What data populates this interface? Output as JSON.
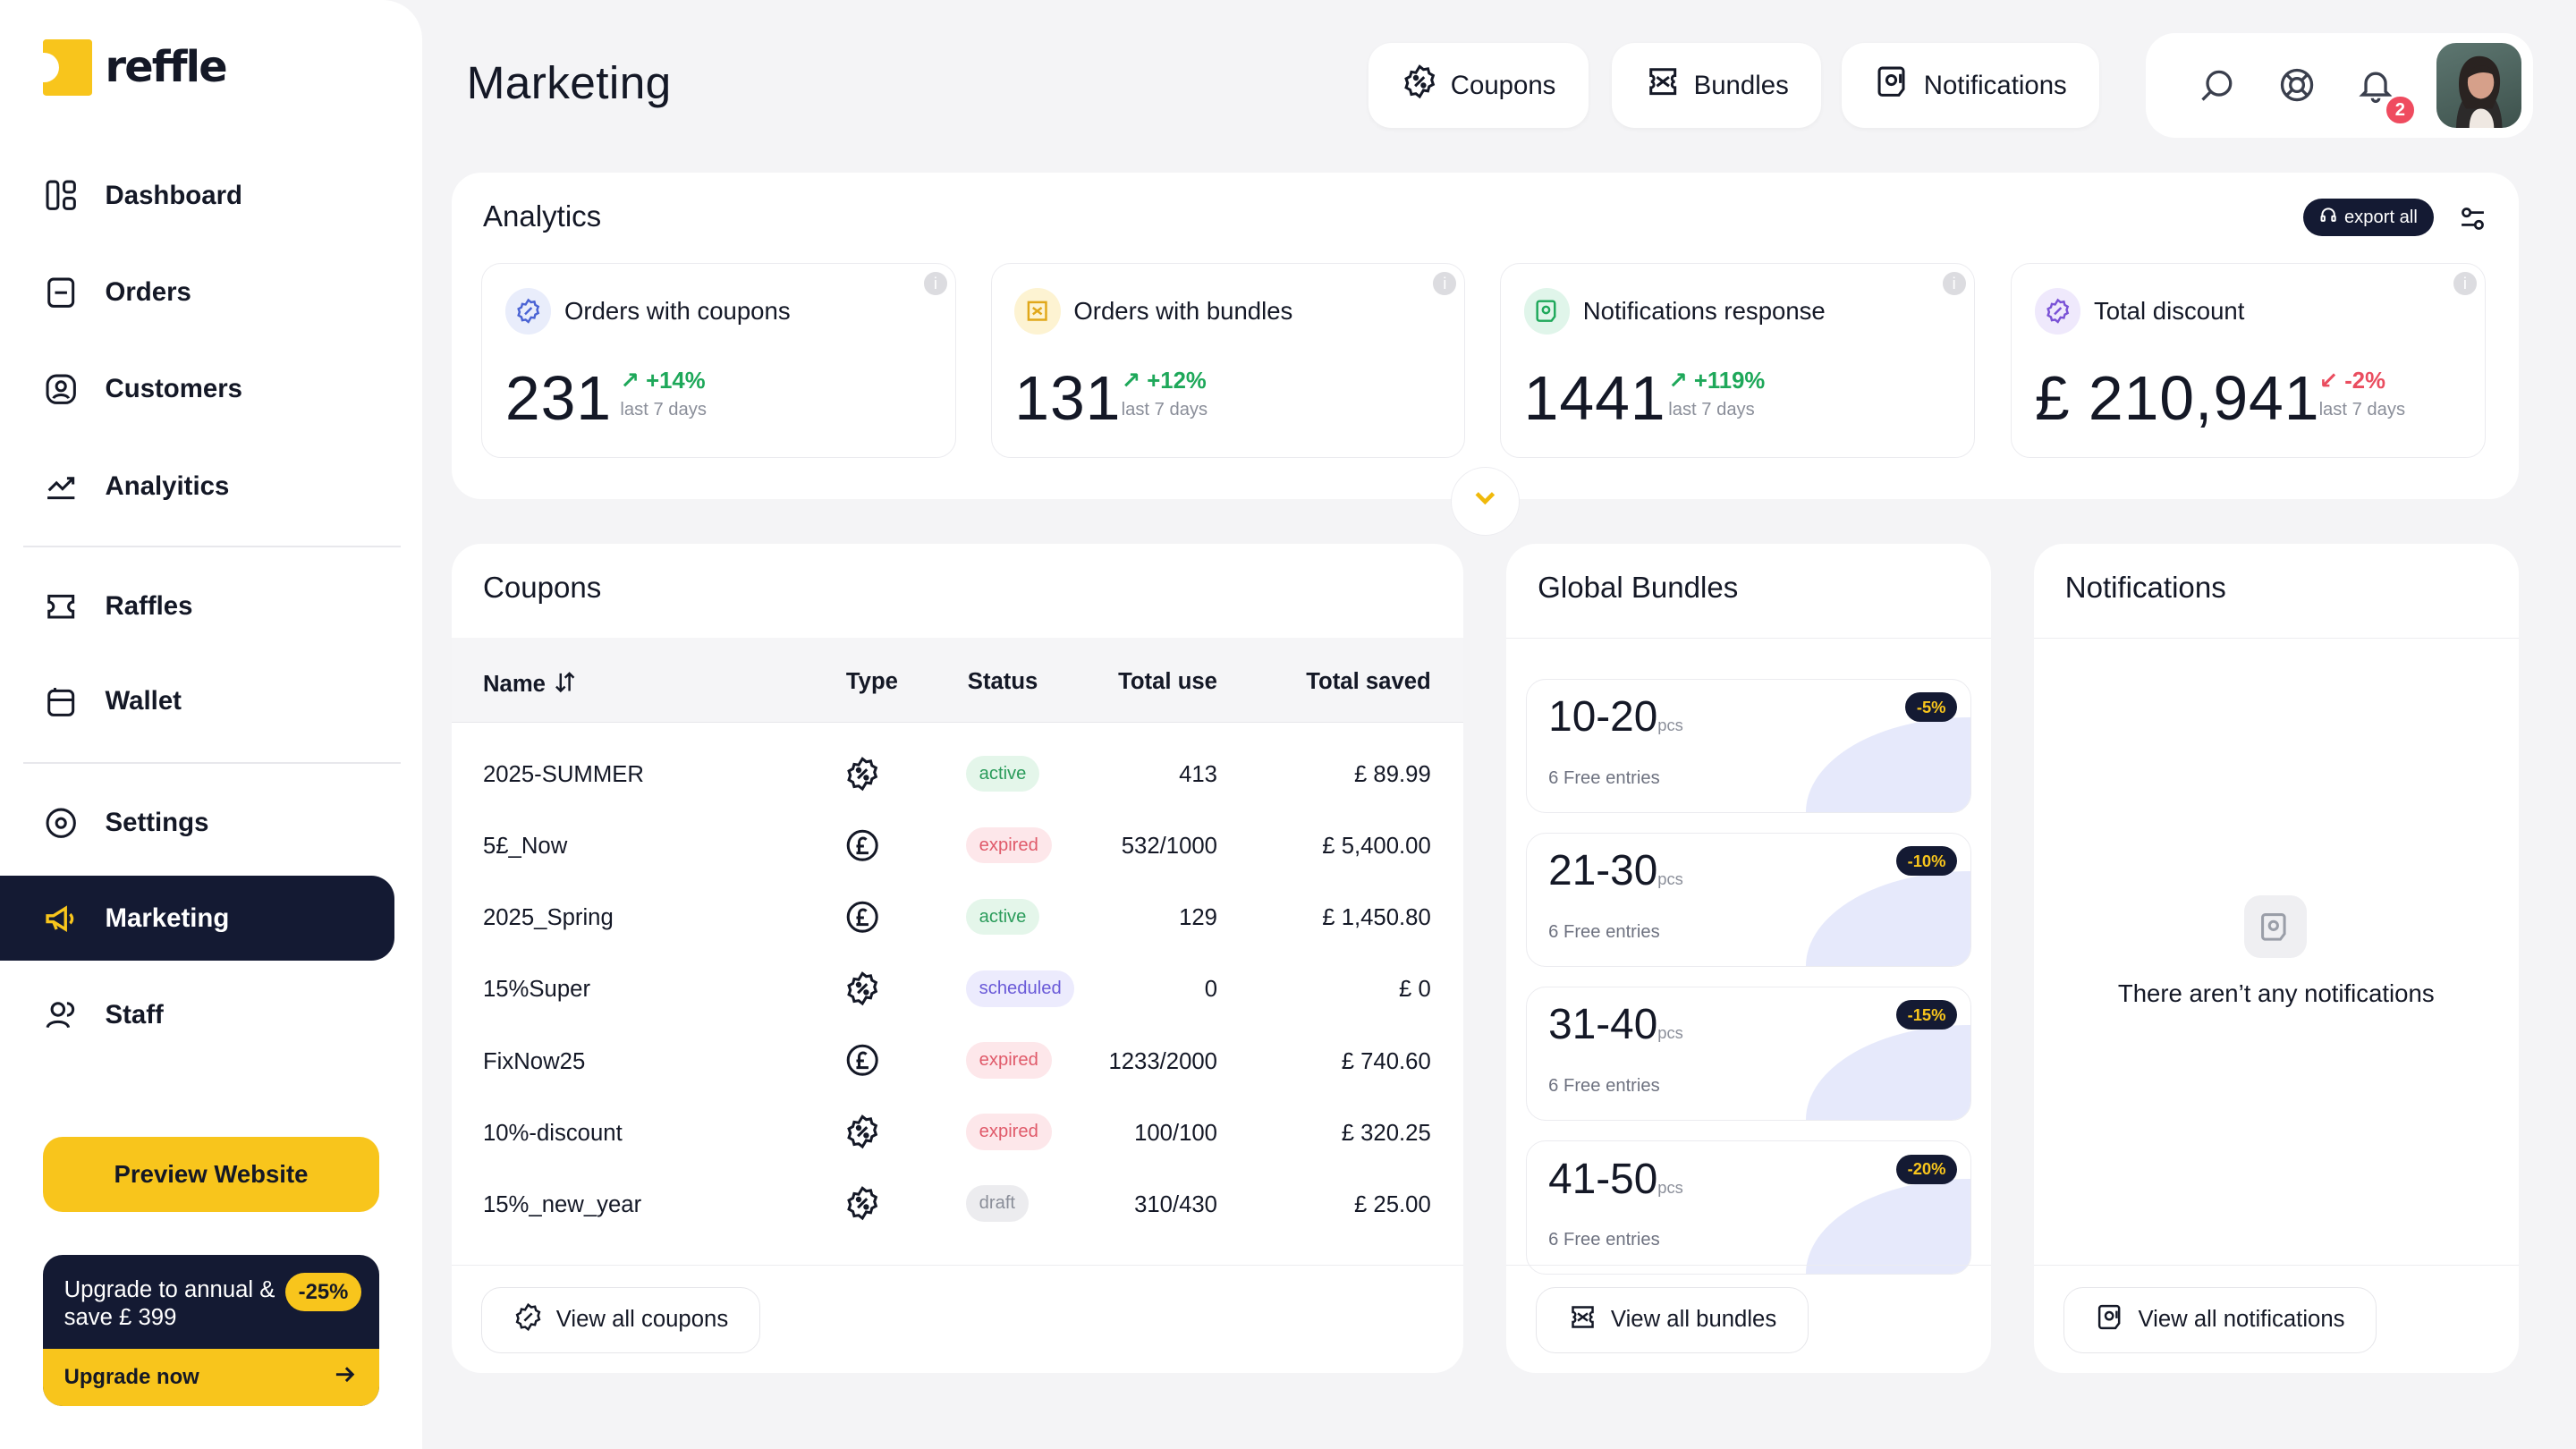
{
  "brand": {
    "name": "reffle",
    "accent": "#f8c51c",
    "dark": "#141a33"
  },
  "sidebar": {
    "items": [
      {
        "label": "Dashboard",
        "icon": "dashboard-icon"
      },
      {
        "label": "Orders",
        "icon": "orders-icon"
      },
      {
        "label": "Customers",
        "icon": "customers-icon"
      },
      {
        "label": "Analyitics",
        "icon": "analytics-icon"
      },
      {
        "label": "Raffles",
        "icon": "ticket-icon"
      },
      {
        "label": "Wallet",
        "icon": "wallet-icon"
      },
      {
        "label": "Settings",
        "icon": "settings-icon"
      },
      {
        "label": "Marketing",
        "icon": "megaphone-icon",
        "active": true
      },
      {
        "label": "Staff",
        "icon": "staff-icon"
      }
    ],
    "preview_label": "Preview Website",
    "upgrade": {
      "text": "Upgrade to annual & save £ 399",
      "badge": "-25%",
      "cta": "Upgrade now"
    }
  },
  "header": {
    "title": "Marketing",
    "buttons": [
      "Coupons",
      "Bundles",
      "Notifications"
    ],
    "notification_count": "2"
  },
  "analytics": {
    "title": "Analytics",
    "export_label": "export all",
    "stats": [
      {
        "label": "Orders with coupons",
        "value": "231",
        "delta": "+14%",
        "trend": "up",
        "period": "last 7 days",
        "icon": "coupon-icon"
      },
      {
        "label": "Orders with bundles",
        "value": "131",
        "delta": "+12%",
        "trend": "up",
        "period": "last 7 days",
        "icon": "bundle-icon"
      },
      {
        "label": "Notifications response",
        "value": "1441",
        "delta": "+119%",
        "trend": "up",
        "period": "last 7 days",
        "icon": "notification-icon"
      },
      {
        "label": "Total discount",
        "value": "£ 210,941",
        "delta": "-2%",
        "trend": "down",
        "period": "last 7 days",
        "icon": "discount-icon"
      }
    ]
  },
  "coupons": {
    "title": "Coupons",
    "columns": [
      "Name",
      "Type",
      "Status",
      "Total use",
      "Total saved"
    ],
    "rows": [
      {
        "name": "2025-SUMMER",
        "type": "percent",
        "status": "active",
        "use": "413",
        "saved": "£ 89.99"
      },
      {
        "name": "5£_Now",
        "type": "pound",
        "status": "expired",
        "use": "532/1000",
        "saved": "£ 5,400.00"
      },
      {
        "name": "2025_Spring",
        "type": "pound",
        "status": "active",
        "use": "129",
        "saved": "£ 1,450.80"
      },
      {
        "name": "15%Super",
        "type": "percent",
        "status": "scheduled",
        "use": "0",
        "saved": "£ 0"
      },
      {
        "name": "FixNow25",
        "type": "pound",
        "status": "expired",
        "use": "1233/2000",
        "saved": "£ 740.60"
      },
      {
        "name": "10%-discount",
        "type": "percent",
        "status": "expired",
        "use": "100/100",
        "saved": "£ 320.25"
      },
      {
        "name": "15%_new_year",
        "type": "percent",
        "status": "draft",
        "use": "310/430",
        "saved": "£ 25.00"
      }
    ],
    "view_all": "View all coupons"
  },
  "bundles": {
    "title": "Global Bundles",
    "unit": "pcs",
    "tiers": [
      {
        "range": "10-20",
        "entries": "6 Free entries",
        "discount": "-5%"
      },
      {
        "range": "21-30",
        "entries": "6 Free entries",
        "discount": "-10%"
      },
      {
        "range": "31-40",
        "entries": "6 Free entries",
        "discount": "-15%"
      },
      {
        "range": "41-50",
        "entries": "6 Free entries",
        "discount": "-20%"
      }
    ],
    "view_all": "View all bundles"
  },
  "notifications": {
    "title": "Notifications",
    "empty_text": "There aren’t any notifications",
    "view_all": "View all notifications"
  }
}
